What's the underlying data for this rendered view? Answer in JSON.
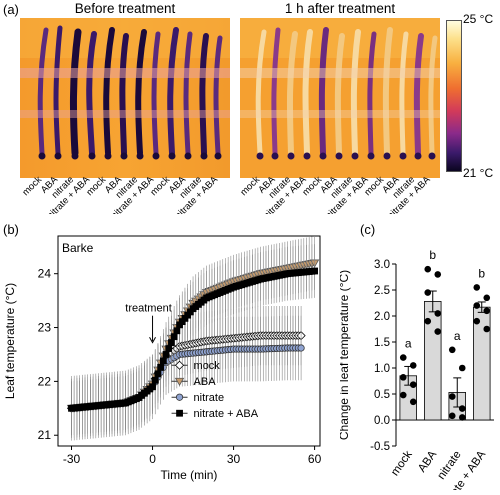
{
  "panel_a": {
    "letter": "(a)",
    "left_title": "Before treatment",
    "right_title": "1 h after treatment",
    "scale_max": "25 °C",
    "scale_min": "21 °C",
    "treatment_labels": [
      "mock",
      "ABA",
      "nitrate",
      "nitrate + ABA",
      "mock",
      "ABA",
      "nitrate",
      "nitrate + ABA",
      "mock",
      "ABA",
      "nitrate",
      "nitrate + ABA"
    ]
  },
  "panel_b": {
    "letter": "(b)",
    "cultivar": "Barke",
    "annotation": "treatment"
  },
  "panel_c": {
    "letter": "(c)"
  },
  "chart_data": [
    {
      "type": "line",
      "title": "Barke",
      "xlabel": "Time (min)",
      "ylabel": "Leaf temperature (°C)",
      "xlim": [
        -35,
        62
      ],
      "ylim": [
        20.8,
        24.7
      ],
      "xticks": [
        "-30",
        "0",
        "30",
        "60"
      ],
      "yticks": [
        "21",
        "22",
        "23",
        "24"
      ],
      "legend_position": "bottom-right",
      "series": [
        {
          "name": "mock",
          "marker": "diamond",
          "color": "#ffffff",
          "x": [
            -30,
            -20,
            -10,
            -5,
            0,
            5,
            10,
            20,
            30,
            40,
            50,
            55
          ],
          "y": [
            21.5,
            21.55,
            21.6,
            21.7,
            21.95,
            22.45,
            22.65,
            22.75,
            22.8,
            22.85,
            22.85,
            22.85
          ],
          "err": 0.55
        },
        {
          "name": "ABA",
          "marker": "triangle-down",
          "color": "#c49a6c",
          "x": [
            -30,
            -20,
            -10,
            -5,
            0,
            5,
            10,
            15,
            20,
            30,
            40,
            50,
            60
          ],
          "y": [
            21.5,
            21.55,
            21.6,
            21.7,
            21.95,
            22.6,
            23.1,
            23.45,
            23.65,
            23.85,
            24.0,
            24.1,
            24.2
          ],
          "err": 0.5
        },
        {
          "name": "nitrate",
          "marker": "circle",
          "color": "#8fa3d1",
          "x": [
            -30,
            -20,
            -10,
            -5,
            0,
            5,
            10,
            20,
            30,
            40,
            50,
            55
          ],
          "y": [
            21.5,
            21.55,
            21.6,
            21.7,
            21.9,
            22.35,
            22.5,
            22.55,
            22.6,
            22.6,
            22.62,
            22.62
          ],
          "err": 0.6
        },
        {
          "name": "nitrate + ABA",
          "marker": "square",
          "color": "#000000",
          "x": [
            -30,
            -20,
            -10,
            -5,
            0,
            5,
            10,
            15,
            20,
            30,
            40,
            50,
            60
          ],
          "y": [
            21.5,
            21.55,
            21.6,
            21.7,
            21.9,
            22.5,
            23.05,
            23.35,
            23.55,
            23.75,
            23.9,
            24.0,
            24.05
          ],
          "err": 0.5
        }
      ]
    },
    {
      "type": "bar",
      "xlabel": "",
      "ylabel": "Change in leaf temperature (°C)",
      "ylim": [
        -0.5,
        3.0
      ],
      "yticks": [
        "-0.5",
        "0.0",
        "0.5",
        "1.0",
        "1.5",
        "2.0",
        "2.5",
        "3.0"
      ],
      "categories": [
        "mock",
        "ABA",
        "nitrate",
        "nitrate + ABA"
      ],
      "values": [
        0.85,
        2.28,
        0.53,
        2.17
      ],
      "errors": [
        0.18,
        0.2,
        0.28,
        0.1
      ],
      "letters": [
        "a",
        "b",
        "a",
        "b"
      ],
      "points": [
        [
          1.2,
          1.05,
          0.82,
          0.68,
          0.48,
          0.35
        ],
        [
          2.9,
          2.8,
          2.45,
          2.05,
          1.9,
          1.7
        ],
        [
          1.35,
          1.0,
          0.45,
          0.22,
          0.08,
          0.05
        ],
        [
          2.55,
          2.35,
          2.2,
          2.1,
          1.9,
          1.75
        ]
      ]
    }
  ]
}
